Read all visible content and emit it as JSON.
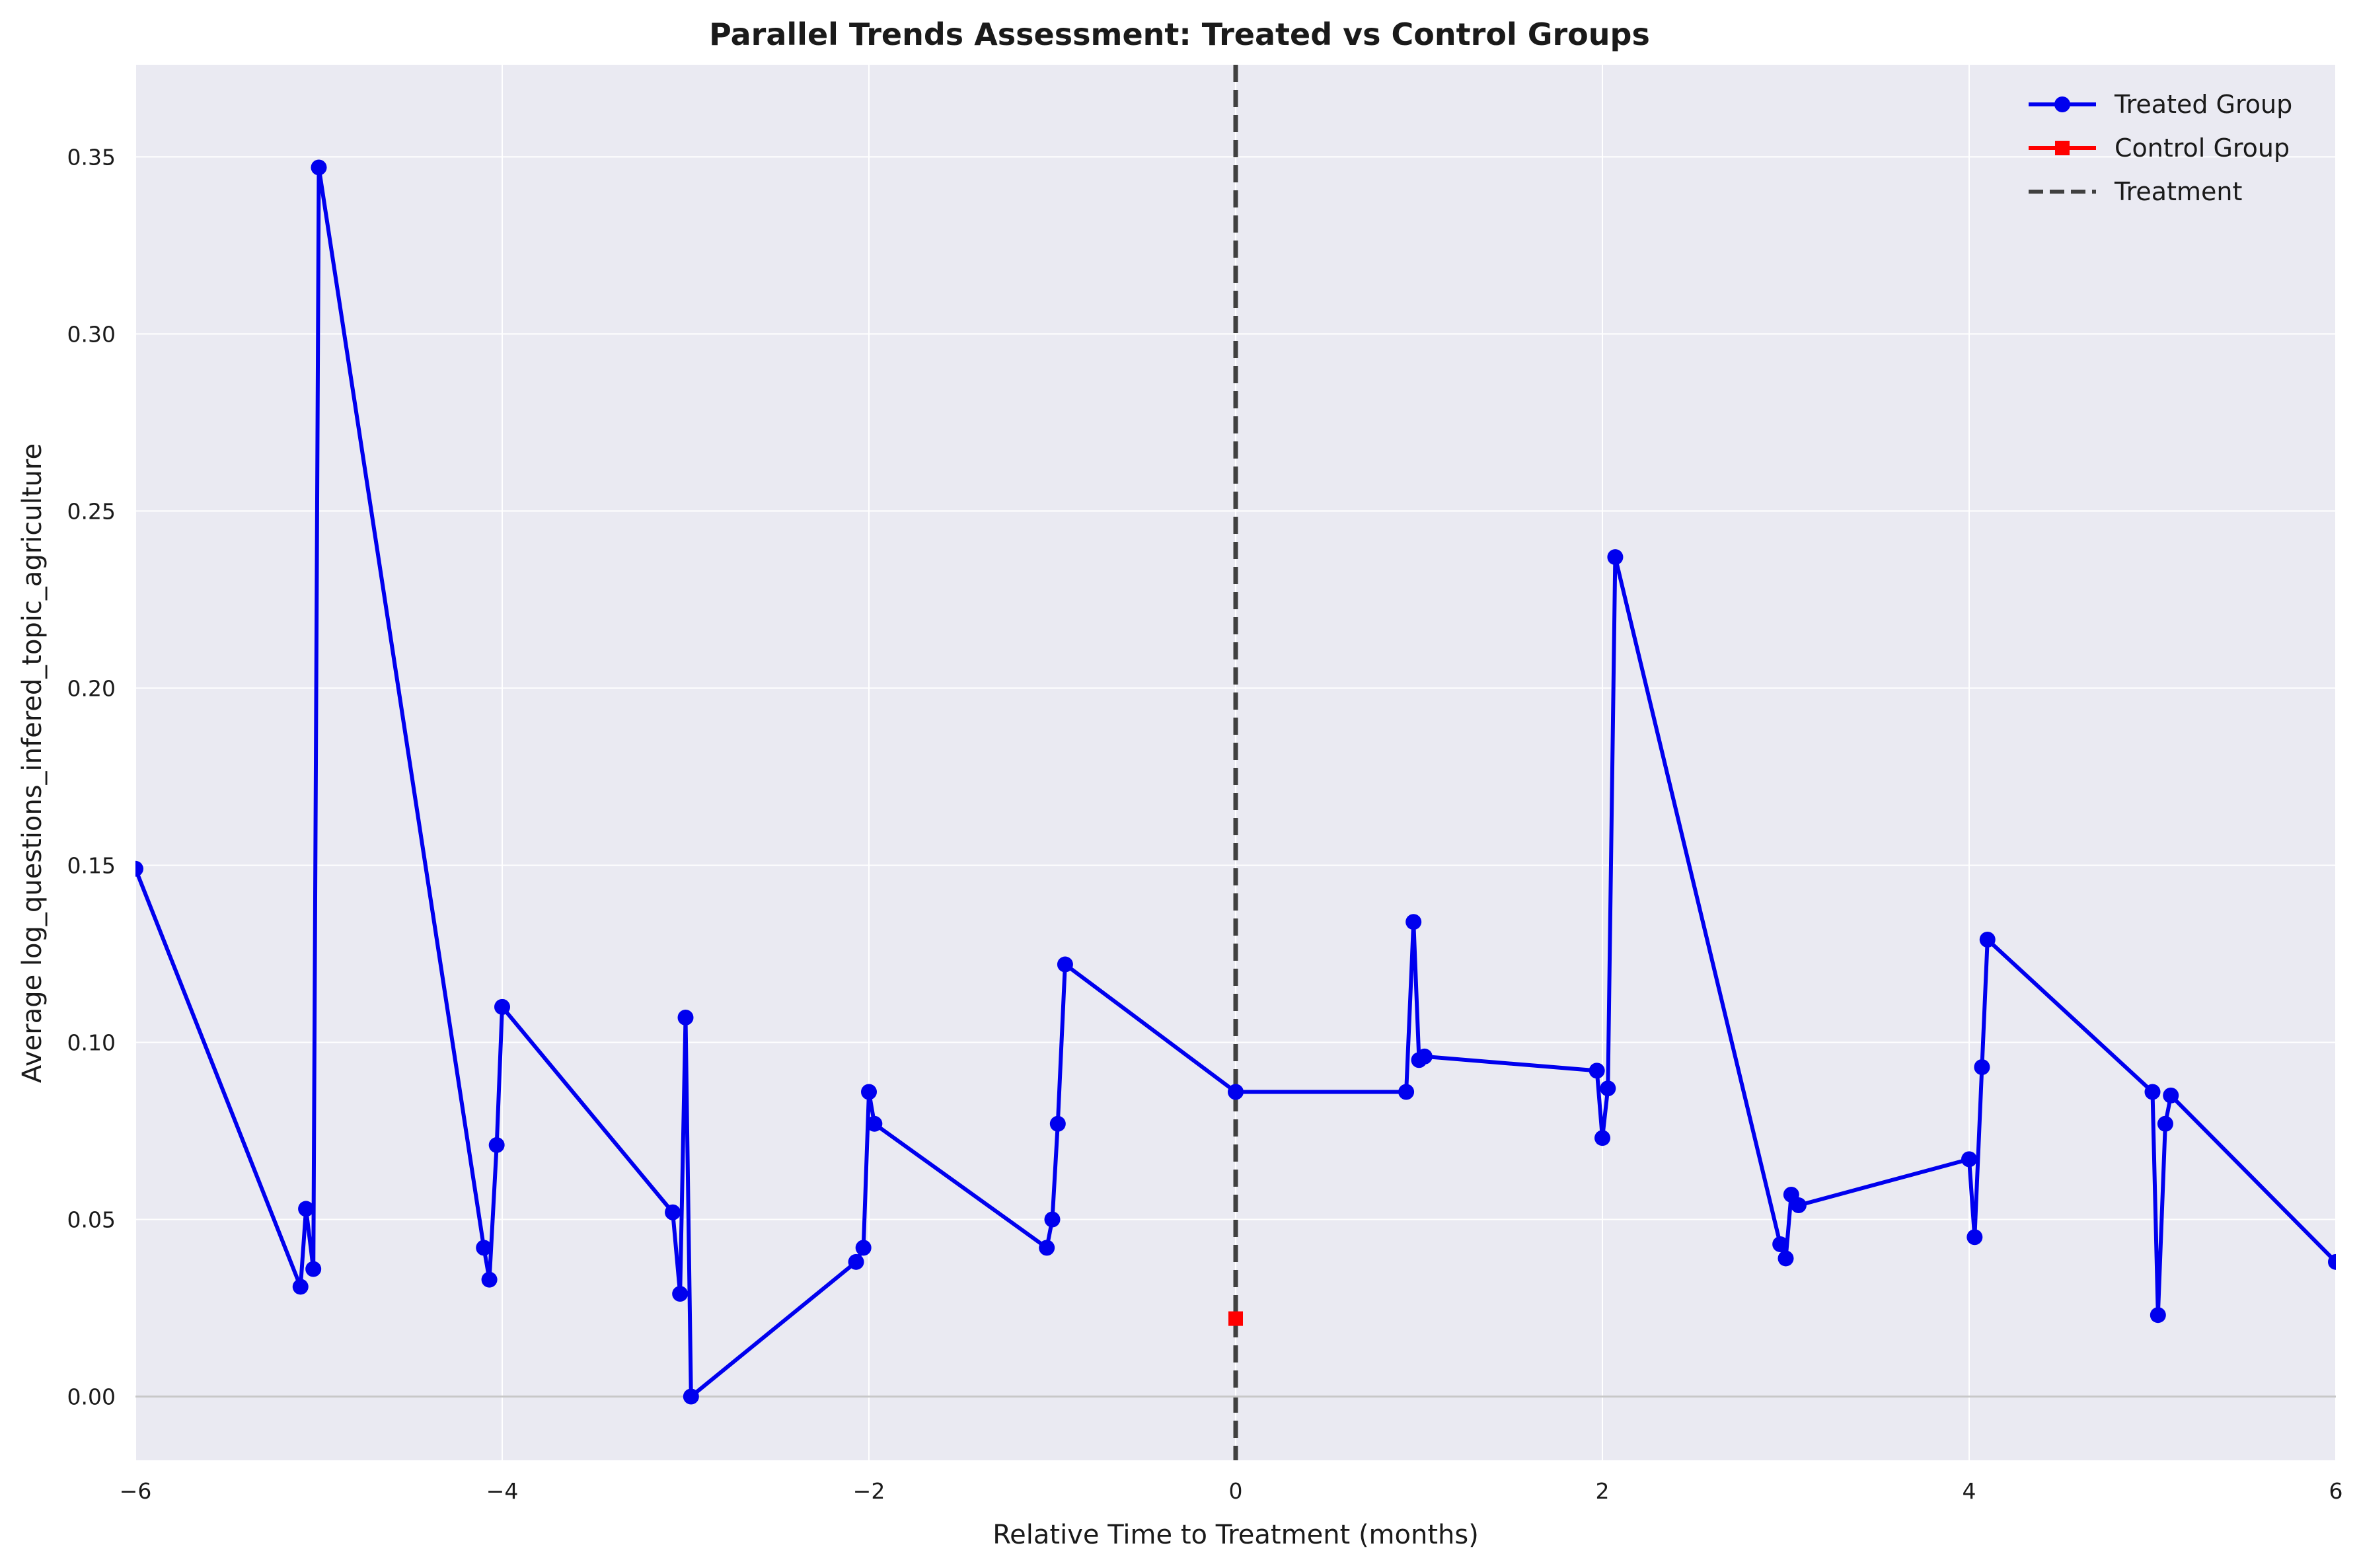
{
  "chart_data": {
    "type": "line",
    "title": "Parallel Trends Assessment: Treated vs Control Groups",
    "xlabel": "Relative Time to Treatment (months)",
    "ylabel": "Average log_questions_infered_topic_agriculture",
    "xlim": [
      -6,
      6
    ],
    "ylim": [
      -0.018,
      0.376
    ],
    "xticks": [
      -6,
      -4,
      -2,
      0,
      2,
      4,
      6
    ],
    "xtick_labels": [
      "−6",
      "−4",
      "−2",
      "0",
      "2",
      "4",
      "6"
    ],
    "yticks": [
      0.0,
      0.05,
      0.1,
      0.15,
      0.2,
      0.25,
      0.3,
      0.35
    ],
    "ytick_labels": [
      "0.00",
      "0.05",
      "0.10",
      "0.15",
      "0.20",
      "0.25",
      "0.30",
      "0.35"
    ],
    "grid": true,
    "legend_position": "top-right",
    "colors": {
      "background": "#eaeaf2",
      "grid": "#ffffff",
      "treated": "#0000ee",
      "control": "#ff0000",
      "treatment_line": "#404040",
      "zero_line": "#c8c8c8"
    },
    "series": [
      {
        "name": "Treated Group",
        "marker": "circle",
        "x": [
          -6.0,
          -5.1,
          -5.07,
          -5.03,
          -5.0,
          -4.1,
          -4.07,
          -4.03,
          -4.0,
          -3.07,
          -3.03,
          -3.0,
          -2.97,
          -2.07,
          -2.03,
          -2.0,
          -1.97,
          -1.03,
          -1.0,
          -0.97,
          -0.93,
          0.0,
          0.93,
          0.97,
          1.0,
          1.03,
          1.97,
          2.0,
          2.03,
          2.07,
          2.97,
          3.0,
          3.03,
          3.07,
          4.0,
          4.03,
          4.07,
          4.1,
          5.0,
          5.03,
          5.07,
          5.1,
          6.0
        ],
        "y": [
          0.149,
          0.031,
          0.053,
          0.036,
          0.347,
          0.042,
          0.033,
          0.071,
          0.11,
          0.052,
          0.029,
          0.107,
          0.0,
          0.038,
          0.042,
          0.086,
          0.077,
          0.042,
          0.05,
          0.077,
          0.122,
          0.086,
          0.086,
          0.134,
          0.095,
          0.096,
          0.092,
          0.073,
          0.087,
          0.237,
          0.043,
          0.039,
          0.057,
          0.054,
          0.067,
          0.045,
          0.093,
          0.129,
          0.086,
          0.023,
          0.077,
          0.085,
          0.038
        ]
      },
      {
        "name": "Control Group",
        "marker": "square",
        "x": [
          0.0
        ],
        "y": [
          0.022
        ]
      }
    ],
    "reference_lines": [
      {
        "name": "Treatment",
        "orientation": "vertical",
        "x": 0,
        "style": "dashed"
      },
      {
        "orientation": "horizontal",
        "y": 0,
        "style": "solid"
      }
    ]
  }
}
